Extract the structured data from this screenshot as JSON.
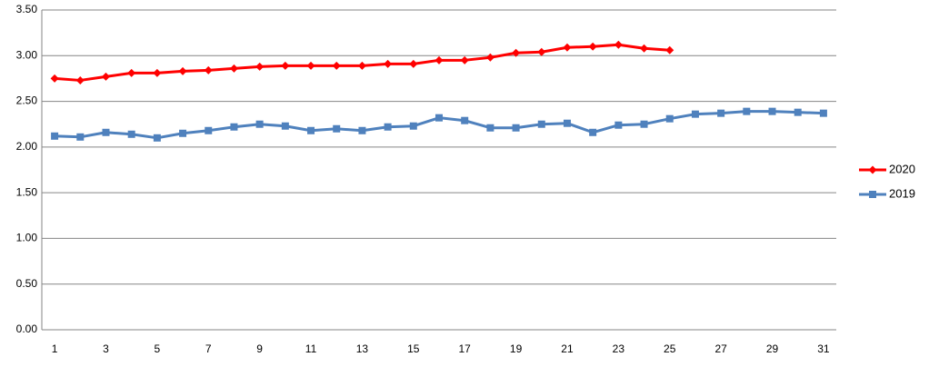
{
  "chart_data": {
    "type": "line",
    "categories": [
      "1",
      null,
      "3",
      null,
      "5",
      null,
      "7",
      null,
      "9",
      null,
      "11",
      null,
      "13",
      null,
      "15",
      null,
      "17",
      null,
      "19",
      null,
      "21",
      null,
      "23",
      null,
      "25",
      null,
      "27",
      null,
      "29",
      null,
      "31"
    ],
    "series": [
      {
        "name": "2020",
        "color": "#ff0000",
        "marker": "diamond",
        "values": [
          2.75,
          2.73,
          2.77,
          2.81,
          2.81,
          2.83,
          2.84,
          2.86,
          2.88,
          2.89,
          2.89,
          2.89,
          2.89,
          2.91,
          2.91,
          2.95,
          2.95,
          2.98,
          3.03,
          3.04,
          3.09,
          3.1,
          3.12,
          3.08,
          3.06,
          null,
          null,
          null,
          null,
          null,
          null
        ]
      },
      {
        "name": "2019",
        "color": "#4f81bd",
        "marker": "square",
        "values": [
          2.12,
          2.11,
          2.16,
          2.14,
          2.1,
          2.15,
          2.18,
          2.22,
          2.25,
          2.23,
          2.18,
          2.2,
          2.18,
          2.22,
          2.23,
          2.32,
          2.29,
          2.21,
          2.21,
          2.25,
          2.26,
          2.16,
          2.24,
          2.25,
          2.31,
          2.36,
          2.37,
          2.39,
          2.39,
          2.38,
          2.37
        ]
      }
    ],
    "ylim": [
      0,
      3.5
    ],
    "yticks": [
      {
        "value": 0,
        "label": "0.00"
      },
      {
        "value": 0.5,
        "label": "0.50"
      },
      {
        "value": 1,
        "label": "1.00"
      },
      {
        "value": 1.5,
        "label": "1.50"
      },
      {
        "value": 2,
        "label": "2.00"
      },
      {
        "value": 2.5,
        "label": "2.50"
      },
      {
        "value": 3,
        "label": "3.00"
      },
      {
        "value": 3.5,
        "label": "3.50"
      }
    ],
    "grid": true,
    "legend": "right"
  }
}
